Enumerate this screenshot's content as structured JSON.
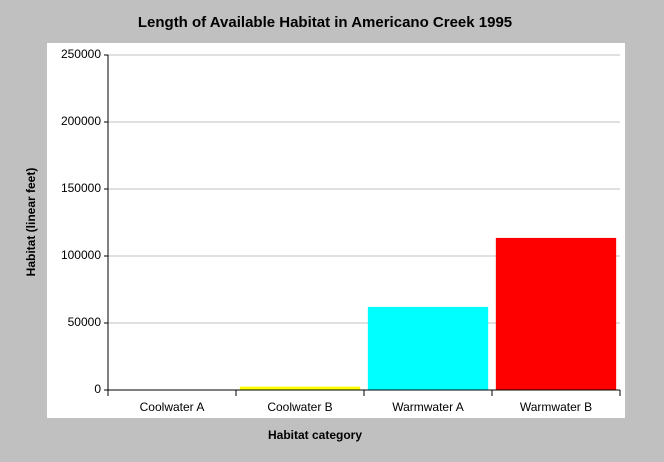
{
  "chart_data": {
    "type": "bar",
    "title": "Length of Available Habitat in Americano Creek 1995",
    "x_label": "Habitat category",
    "y_label": "Habitat (linear feet)",
    "categories": [
      "Coolwater A",
      "Coolwater B",
      "Warmwater A",
      "Warmwater B"
    ],
    "values": [
      0,
      2500,
      62000,
      113500
    ],
    "colors": [
      "#0000ff",
      "#ffff00",
      "#00ffff",
      "#ff0000"
    ],
    "ylim": [
      0,
      250000
    ],
    "yticks": [
      0,
      50000,
      100000,
      150000,
      200000,
      250000
    ],
    "grid": true
  }
}
